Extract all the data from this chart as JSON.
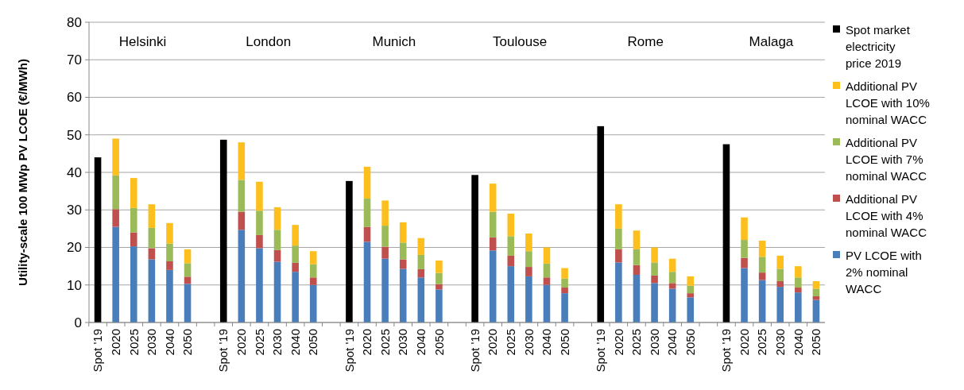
{
  "chart_data": {
    "type": "bar",
    "stacked": true,
    "ylabel": "Utility-scale 100 MWp PV LCOE (€/MWh)",
    "categories": [
      "Spot '19",
      "2020",
      "2025",
      "2030",
      "2040",
      "2050",
      null,
      "Spot '19",
      "2020",
      "2025",
      "2030",
      "2040",
      "2050",
      null,
      "Spot '19",
      "2020",
      "2025",
      "2030",
      "2040",
      "2050",
      null,
      "Spot '19",
      "2020",
      "2025",
      "2030",
      "2040",
      "2050",
      null,
      "Spot '19",
      "2020",
      "2025",
      "2030",
      "2040",
      "2050",
      null,
      "Spot '19",
      "2020",
      "2025",
      "2030",
      "2040",
      "2050"
    ],
    "series": [
      {
        "name": "PV LCOE with 2% nominal WACC",
        "color": "#4a7ebb",
        "values": [
          null,
          25.5,
          20.3,
          16.8,
          14,
          10.3,
          null,
          null,
          24.7,
          19.8,
          16.2,
          13.5,
          10,
          null,
          null,
          21.5,
          17,
          14.3,
          12,
          8.8,
          null,
          null,
          19.2,
          15,
          12.3,
          10,
          7.8,
          null,
          null,
          16,
          12.7,
          10.5,
          9,
          6.7,
          null,
          null,
          14.5,
          11.3,
          9.5,
          8,
          6
        ]
      },
      {
        "name": "Additional PV LCOE with 4% nominal WACC",
        "color": "#c0504d",
        "values": [
          null,
          4.7,
          3.7,
          3,
          2.3,
          1.9,
          null,
          null,
          4.8,
          3.5,
          3.1,
          2.4,
          2,
          null,
          null,
          4,
          3.2,
          2.5,
          2.2,
          1.4,
          null,
          null,
          3.5,
          2.8,
          2.5,
          2,
          1.5,
          null,
          null,
          3.5,
          2.6,
          2,
          1.5,
          1.1,
          null,
          null,
          2.7,
          2,
          1.5,
          1.3,
          1
        ]
      },
      {
        "name": "Additional PV LCOE with 7% nominal WACC",
        "color": "#9bbb59",
        "values": [
          null,
          9,
          6.5,
          5.4,
          4.7,
          3.6,
          null,
          null,
          8.5,
          6.5,
          5.4,
          4.6,
          3.5,
          null,
          null,
          7.5,
          5.6,
          4.5,
          3.8,
          3,
          null,
          null,
          6.8,
          5.2,
          4.2,
          3.7,
          2.4,
          null,
          null,
          5.5,
          4.2,
          3.5,
          3,
          2,
          null,
          null,
          4.8,
          4.2,
          3.3,
          2.7,
          2
        ]
      },
      {
        "name": "Additional PV LCOE with 10% nominal WACC",
        "color": "#fcbf1e",
        "values": [
          null,
          9.8,
          8,
          6.3,
          5.5,
          3.7,
          null,
          null,
          10,
          7.7,
          6,
          5.5,
          3.5,
          null,
          null,
          8.5,
          6.7,
          5.4,
          4.5,
          3.3,
          null,
          null,
          7.5,
          6,
          4.7,
          4.3,
          2.8,
          null,
          null,
          6.5,
          5,
          4,
          3.5,
          2.5,
          null,
          null,
          6,
          4.3,
          3.5,
          3,
          2
        ]
      },
      {
        "name": "Spot market electricity price 2019",
        "color": "#000000",
        "values": [
          44,
          null,
          null,
          null,
          null,
          null,
          null,
          48.7,
          null,
          null,
          null,
          null,
          null,
          null,
          37.7,
          null,
          null,
          null,
          null,
          null,
          null,
          39.3,
          null,
          null,
          null,
          null,
          null,
          null,
          52.3,
          null,
          null,
          null,
          null,
          null,
          null,
          47.5,
          null,
          null,
          null,
          null,
          null
        ]
      }
    ],
    "ylim": [
      0,
      80
    ],
    "yticks": [
      0,
      10,
      20,
      30,
      40,
      50,
      60,
      70,
      80
    ],
    "grid": "y",
    "legend": "right",
    "annotations": [
      "Helsinki",
      "London",
      "Munich",
      "Toulouse",
      "Rome",
      "Malaga"
    ]
  }
}
